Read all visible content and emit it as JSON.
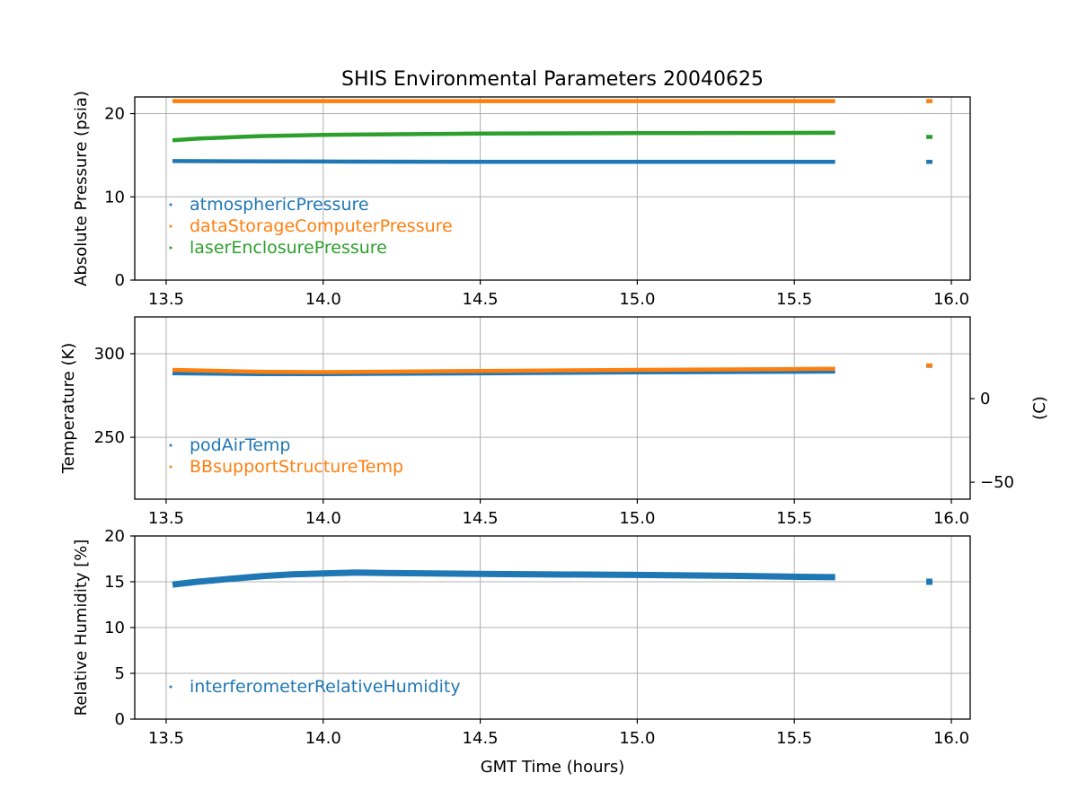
{
  "title": "SHIS Environmental Parameters 20040625",
  "xlabel": "GMT Time (hours)",
  "chart_data": [
    {
      "type": "line",
      "ylabel": "Absolute Pressure (psia)",
      "xlim": [
        13.4,
        16.06
      ],
      "ylim": [
        0,
        22
      ],
      "xticks": [
        13.5,
        14.0,
        14.5,
        15.0,
        15.5,
        16.0
      ],
      "xtick_labels": [
        "13.5",
        "14.0",
        "14.5",
        "15.0",
        "15.5",
        "16.0"
      ],
      "yticks": [
        0,
        10,
        20
      ],
      "ytick_labels": [
        "0",
        "10",
        "20"
      ],
      "grid": true,
      "legend_position": "lower-left",
      "series": [
        {
          "name": "atmosphericPressure",
          "color": "#1f77b4",
          "segments": [
            {
              "x": [
                13.52,
                14.0,
                14.5,
                15.0,
                15.63
              ],
              "y": [
                14.3,
                14.25,
                14.2,
                14.2,
                14.2
              ]
            },
            {
              "x": [
                15.92,
                15.94
              ],
              "y": [
                14.2,
                14.2
              ]
            }
          ]
        },
        {
          "name": "dataStorageComputerPressure",
          "color": "#ff7f0e",
          "segments": [
            {
              "x": [
                13.52,
                14.0,
                14.5,
                15.0,
                15.63
              ],
              "y": [
                21.5,
                21.5,
                21.5,
                21.5,
                21.5
              ]
            },
            {
              "x": [
                15.92,
                15.94
              ],
              "y": [
                21.5,
                21.5
              ]
            }
          ]
        },
        {
          "name": "laserEnclosurePressure",
          "color": "#2ca02c",
          "segments": [
            {
              "x": [
                13.52,
                13.6,
                13.8,
                14.0,
                14.5,
                15.0,
                15.63
              ],
              "y": [
                16.8,
                17.0,
                17.3,
                17.45,
                17.6,
                17.65,
                17.7
              ]
            },
            {
              "x": [
                15.92,
                15.94
              ],
              "y": [
                17.2,
                17.2
              ]
            }
          ]
        }
      ]
    },
    {
      "type": "line",
      "ylabel": "Temperature (K)",
      "y2label": "(C)",
      "xlim": [
        13.4,
        16.06
      ],
      "ylim": [
        213,
        322
      ],
      "xticks": [
        13.5,
        14.0,
        14.5,
        15.0,
        15.5,
        16.0
      ],
      "xtick_labels": [
        "13.5",
        "14.0",
        "14.5",
        "15.0",
        "15.5",
        "16.0"
      ],
      "yticks": [
        250,
        300
      ],
      "ytick_labels": [
        "250",
        "300"
      ],
      "y2ticks_kelvin": [
        223.15,
        273.15
      ],
      "y2tick_labels": [
        "−50",
        "0"
      ],
      "grid": true,
      "legend_position": "lower-left",
      "series": [
        {
          "name": "podAirTemp",
          "color": "#1f77b4",
          "segments": [
            {
              "x": [
                13.52,
                13.8,
                14.0,
                14.5,
                15.0,
                15.5,
                15.63
              ],
              "y": [
                288.3,
                287.8,
                287.8,
                288.2,
                288.8,
                289.2,
                289.3
              ]
            },
            {
              "x": [
                15.92,
                15.94
              ],
              "y": [
                292.8,
                292.8
              ]
            }
          ]
        },
        {
          "name": "BBsupportStructureTemp",
          "color": "#ff7f0e",
          "segments": [
            {
              "x": [
                13.52,
                13.8,
                14.0,
                14.5,
                15.0,
                15.5,
                15.63
              ],
              "y": [
                290.3,
                289.2,
                289.0,
                289.7,
                290.3,
                290.8,
                291.0
              ]
            },
            {
              "x": [
                15.92,
                15.94
              ],
              "y": [
                293.0,
                293.0
              ]
            }
          ]
        }
      ]
    },
    {
      "type": "line",
      "ylabel": "Relative Humidity [%]",
      "xlim": [
        13.4,
        16.06
      ],
      "ylim": [
        0,
        20
      ],
      "xticks": [
        13.5,
        14.0,
        14.5,
        15.0,
        15.5,
        16.0
      ],
      "xtick_labels": [
        "13.5",
        "14.0",
        "14.5",
        "15.0",
        "15.5",
        "16.0"
      ],
      "yticks": [
        0,
        5,
        10,
        15,
        20
      ],
      "ytick_labels": [
        "0",
        "5",
        "10",
        "15",
        "20"
      ],
      "grid": true,
      "legend_position": "lower-left",
      "series": [
        {
          "name": "interferometerRelativeHumidity",
          "color": "#1f77b4",
          "segments": [
            {
              "x": [
                13.52,
                13.6,
                13.7,
                13.8,
                13.9,
                14.0,
                14.1,
                14.2,
                14.5,
                15.0,
                15.3,
                15.5,
                15.63
              ],
              "y": [
                14.7,
                15.0,
                15.3,
                15.6,
                15.8,
                15.9,
                16.0,
                15.95,
                15.85,
                15.75,
                15.65,
                15.55,
                15.5
              ]
            },
            {
              "x": [
                15.92,
                15.94
              ],
              "y": [
                15.0,
                15.0
              ]
            }
          ]
        }
      ]
    }
  ]
}
